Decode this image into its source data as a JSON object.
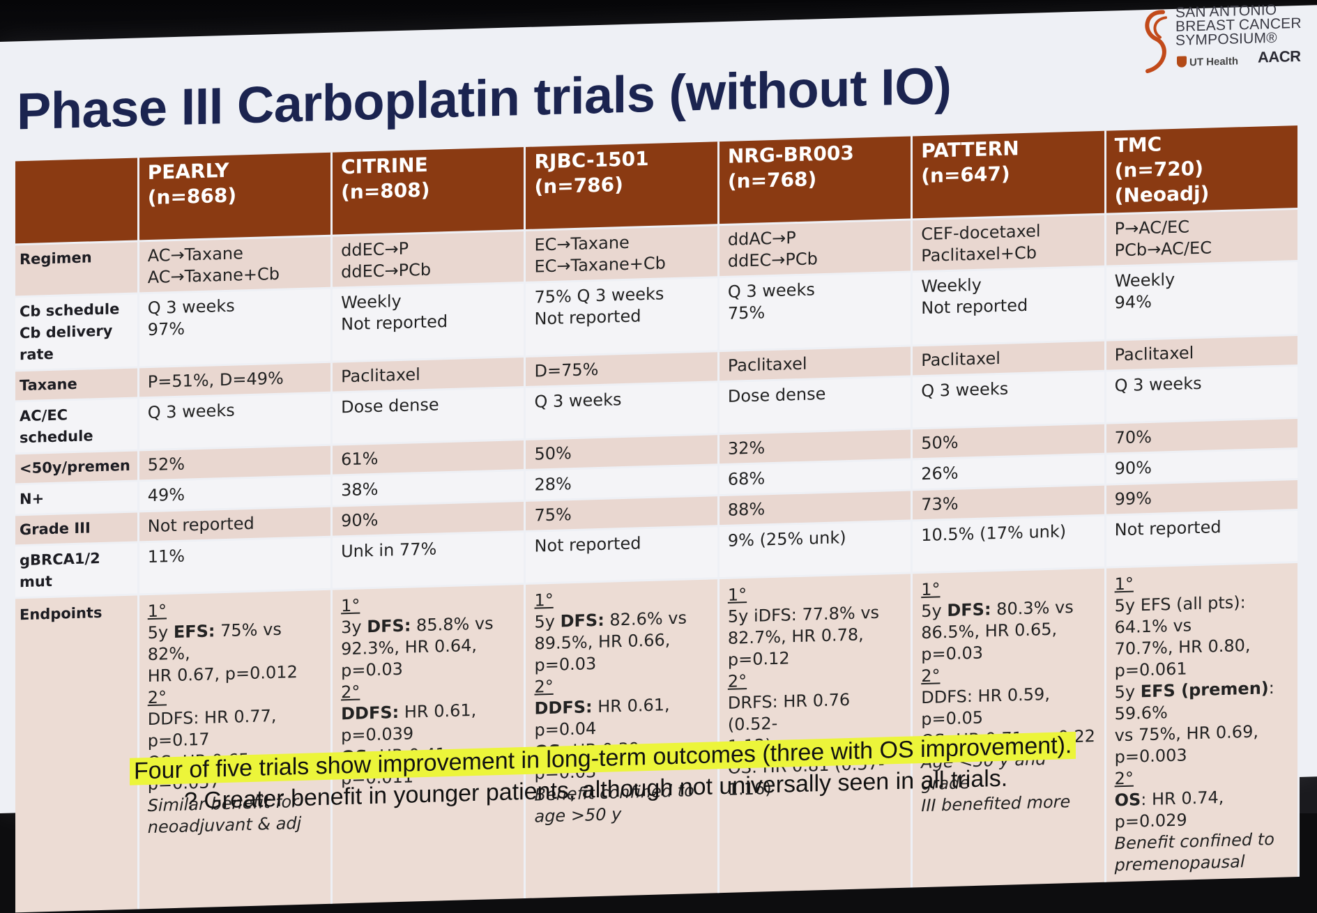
{
  "slide": {
    "title": "Phase III Carboplatin trials (without IO)",
    "logo": {
      "line1": "SAN ANTONIO",
      "line2": "BREAST CANCER",
      "line3": "SYMPOSIUM®",
      "partner1": "UT Health",
      "partner2": "AACR"
    },
    "colors": {
      "header": "#8a3a12",
      "title": "#1b2450",
      "shade": "#e9d7d0",
      "highlight": "#ecf53a"
    }
  },
  "table": {
    "headers": [
      {
        "name": "PEARLY",
        "n": "(n=868)"
      },
      {
        "name": "CITRINE",
        "n": "(n=808)"
      },
      {
        "name": "RJBC-1501",
        "n": "(n=786)"
      },
      {
        "name": "NRG-BR003",
        "n": "(n=768)"
      },
      {
        "name": "PATTERN",
        "n": "(n=647)"
      },
      {
        "name": "TMC",
        "n": "(n=720) (Neoadj)"
      }
    ],
    "regimen": {
      "label": "Regimen",
      "cells": [
        [
          "AC→Taxane",
          "AC→Taxane+Cb"
        ],
        [
          "ddEC→P",
          "ddEC→PCb"
        ],
        [
          "EC→Taxane",
          "EC→Taxane+Cb"
        ],
        [
          "ddAC→P",
          "ddEC→PCb"
        ],
        [
          "CEF-docetaxel",
          "Paclitaxel+Cb"
        ],
        [
          "P→AC/EC",
          "PCb→AC/EC"
        ]
      ]
    },
    "schedule": {
      "label1": "Cb schedule",
      "label2": "Cb delivery rate",
      "cells": [
        [
          "Q 3 weeks",
          "97%"
        ],
        [
          "Weekly",
          "Not reported"
        ],
        [
          "75% Q 3 weeks",
          "Not reported"
        ],
        [
          "Q 3 weeks",
          "75%"
        ],
        [
          "Weekly",
          "Not reported"
        ],
        [
          "Weekly",
          "94%"
        ]
      ]
    },
    "taxane": {
      "label": "Taxane",
      "cells": [
        "P=51%, D=49%",
        "Paclitaxel",
        "D=75%",
        "Paclitaxel",
        "Paclitaxel",
        "Paclitaxel"
      ]
    },
    "acec": {
      "label": "AC/EC schedule",
      "cells": [
        "Q 3 weeks",
        "Dose dense",
        "Q 3 weeks",
        "Dose dense",
        "Q 3 weeks",
        "Q 3 weeks"
      ]
    },
    "premen": {
      "label": "<50y/premen",
      "cells": [
        "52%",
        "61%",
        "50%",
        "32%",
        "50%",
        "70%"
      ]
    },
    "nplus": {
      "label": "N+",
      "cells": [
        "49%",
        "38%",
        "28%",
        "68%",
        "26%",
        "90%"
      ]
    },
    "grade": {
      "label": "Grade III",
      "cells": [
        "Not reported",
        "90%",
        "75%",
        "88%",
        "73%",
        "99%"
      ]
    },
    "brca": {
      "label": "gBRCA1/2 mut",
      "cells": [
        "11%",
        "Unk in 77%",
        "Not reported",
        "9% (25% unk)",
        "10.5% (17% unk)",
        "Not reported"
      ]
    },
    "endpoints": {
      "label": "Endpoints",
      "pearly": {
        "p": "1°",
        "a": "5y ",
        "ab": "EFS:",
        "at": " 75% vs 82%,",
        "b": "HR 0.67, p=0.012",
        "s": "2°",
        "c": "DDFS: HR 0.77,",
        "d": "p=0.17",
        "e": "OS: HR 0.65,",
        "f": "p=0.057",
        "g": "Similar benefit for",
        "h": "neoadjuvant & adj"
      },
      "citrine": {
        "p": "1°",
        "a": "3y ",
        "ab": "DFS:",
        "at": " 85.8% vs",
        "b": "92.3%, HR 0.64,",
        "c": "p=0.03",
        "s": "2°",
        "db": "DDFS:",
        "dt": " HR 0.61,",
        "e": "p=0.039",
        "fb": "OS:",
        "ft": " HR 0.41,",
        "g": "p=0.011"
      },
      "rjbc": {
        "p": "1°",
        "a": "5y ",
        "ab": "DFS:",
        "at": " 82.6% vs",
        "b": "89.5%, HR 0.66,",
        "c": "p=0.03",
        "s": "2°",
        "db": "DDFS:",
        "dt": " HR 0.61,",
        "e": "p=0.04",
        "fb": "OS:",
        "ft": " HR 0.39, p=0.03",
        "g": "Benefit confined to",
        "h": "age >50 y"
      },
      "nrg": {
        "p": "1°",
        "a": "5y iDFS: 77.8% vs",
        "b": "82.7%, HR 0.78,",
        "c": "p=0.12",
        "s": "2°",
        "d": "DRFS: HR 0.76 (0.52-",
        "e": "1.12)",
        "f": "OS: HR 0.81 (0.57-",
        "g": "1.16)"
      },
      "pattern": {
        "p": "1°",
        "a": "5y ",
        "ab": "DFS:",
        "at": " 80.3% vs",
        "b": "86.5%, HR 0.65,",
        "c": "p=0.03",
        "s": "2°",
        "d": "DDFS: HR 0.59, p=0.05",
        "e": "OS: HR 0.71, p=0.22",
        "f": "Age <50 y and grade",
        "g": "III benefited more"
      },
      "tmc": {
        "p": "1°",
        "a": "5y EFS (all pts): 64.1% vs",
        "b": "70.7%, HR 0.80, p=0.061",
        "c": "5y ",
        "cb": "EFS (premen)",
        "ct": ": 59.6%",
        "d": "vs 75%, HR 0.69,",
        "e": "p=0.003",
        "s": "2°",
        "fb": "OS",
        "ft": ": HR 0.74, p=0.029",
        "g": "Benefit confined to",
        "h": "premenopausal"
      }
    }
  },
  "footer": {
    "line1": "Four of five trials show improvement in long-term outcomes (three with OS improvement).",
    "line2": "? Greater benefit in younger patients, although not universally seen in all trials."
  }
}
